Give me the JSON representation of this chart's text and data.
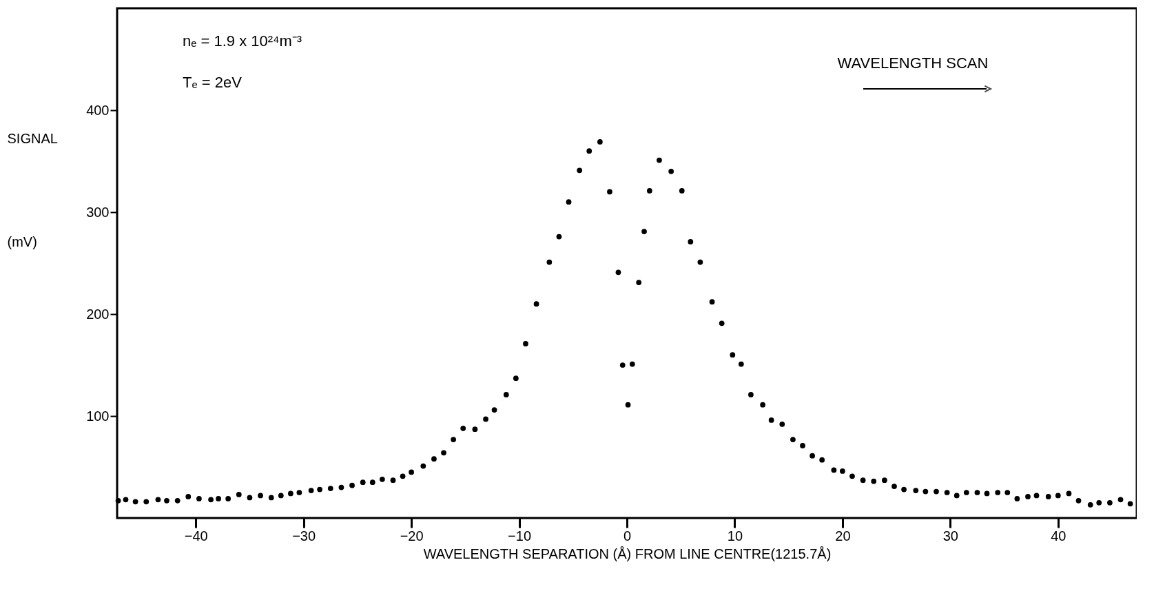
{
  "chart_data": {
    "type": "scatter",
    "xlabel": "WAVELENGTH SEPARATION (Å) FROM LINE CENTRE(1215.7Å)",
    "ylabel": "SIGNAL (mV)",
    "annotations": [
      "nₑ = 1.9 x 10²⁴m⁻³",
      "Tₑ = 2eV",
      "WAVELENGTH SCAN"
    ],
    "xlim": [
      -47.3,
      47.3
    ],
    "ylim": [
      0,
      500
    ],
    "xticks": [
      -40,
      -30,
      -20,
      -10,
      0,
      10,
      20,
      30,
      40
    ],
    "yticks": [
      100,
      200,
      300,
      400
    ],
    "grid": false,
    "marker": "circle",
    "series": [
      {
        "color": "#000000",
        "x": [
          -47.2,
          -46.5,
          -45.6,
          -44.6,
          -43.5,
          -42.7,
          -41.7,
          -40.7,
          -39.7,
          -38.6,
          -37.9,
          -37.0,
          -36.0,
          -35.0,
          -34.0,
          -33.0,
          -32.1,
          -31.2,
          -30.4,
          -29.3,
          -28.5,
          -27.5,
          -26.5,
          -25.5,
          -24.5,
          -23.6,
          -22.7,
          -21.7,
          -20.8,
          -20.0,
          -18.9,
          -17.9,
          -17.0,
          -16.1,
          -15.2,
          -14.1,
          -13.1,
          -12.3,
          -11.2,
          -10.3,
          -9.4,
          -8.4,
          -7.2,
          -6.3,
          -5.4,
          -4.4,
          -3.5,
          -2.5,
          -1.6,
          -0.8,
          -0.4,
          0.5,
          0.1,
          1.1,
          1.6,
          2.1,
          3.0,
          4.1,
          5.1,
          5.9,
          6.8,
          7.9,
          8.8,
          9.8,
          10.6,
          11.5,
          12.6,
          13.4,
          14.4,
          15.4,
          16.3,
          17.2,
          18.1,
          19.2,
          20.0,
          20.9,
          21.9,
          22.9,
          23.9,
          24.8,
          25.7,
          26.8,
          27.7,
          28.7,
          29.7,
          30.6,
          31.5,
          32.5,
          33.4,
          34.4,
          35.3,
          36.2,
          37.2,
          38.0,
          39.1,
          40.0,
          41.0,
          41.9,
          43.0,
          43.8,
          44.8,
          45.8,
          46.7
        ],
        "values": [
          17,
          18,
          16,
          16,
          18,
          17,
          17,
          21,
          19,
          18,
          19,
          19,
          23,
          20,
          22,
          20,
          22,
          24,
          25,
          27,
          28,
          29,
          30,
          32,
          35,
          35,
          38,
          37,
          41,
          45,
          51,
          58,
          64,
          77,
          88,
          87,
          97,
          106,
          121,
          137,
          171,
          210,
          251,
          276,
          310,
          341,
          360,
          369,
          320,
          241,
          150,
          151,
          111,
          231,
          281,
          321,
          351,
          340,
          321,
          271,
          251,
          212,
          191,
          160,
          151,
          121,
          111,
          96,
          92,
          77,
          71,
          61,
          57,
          47,
          46,
          41,
          37,
          36,
          37,
          31,
          28,
          27,
          26,
          26,
          25,
          22,
          25,
          25,
          24,
          25,
          25,
          19,
          21,
          22,
          21,
          22,
          24,
          17,
          13,
          15,
          15,
          18,
          14
        ]
      }
    ]
  }
}
